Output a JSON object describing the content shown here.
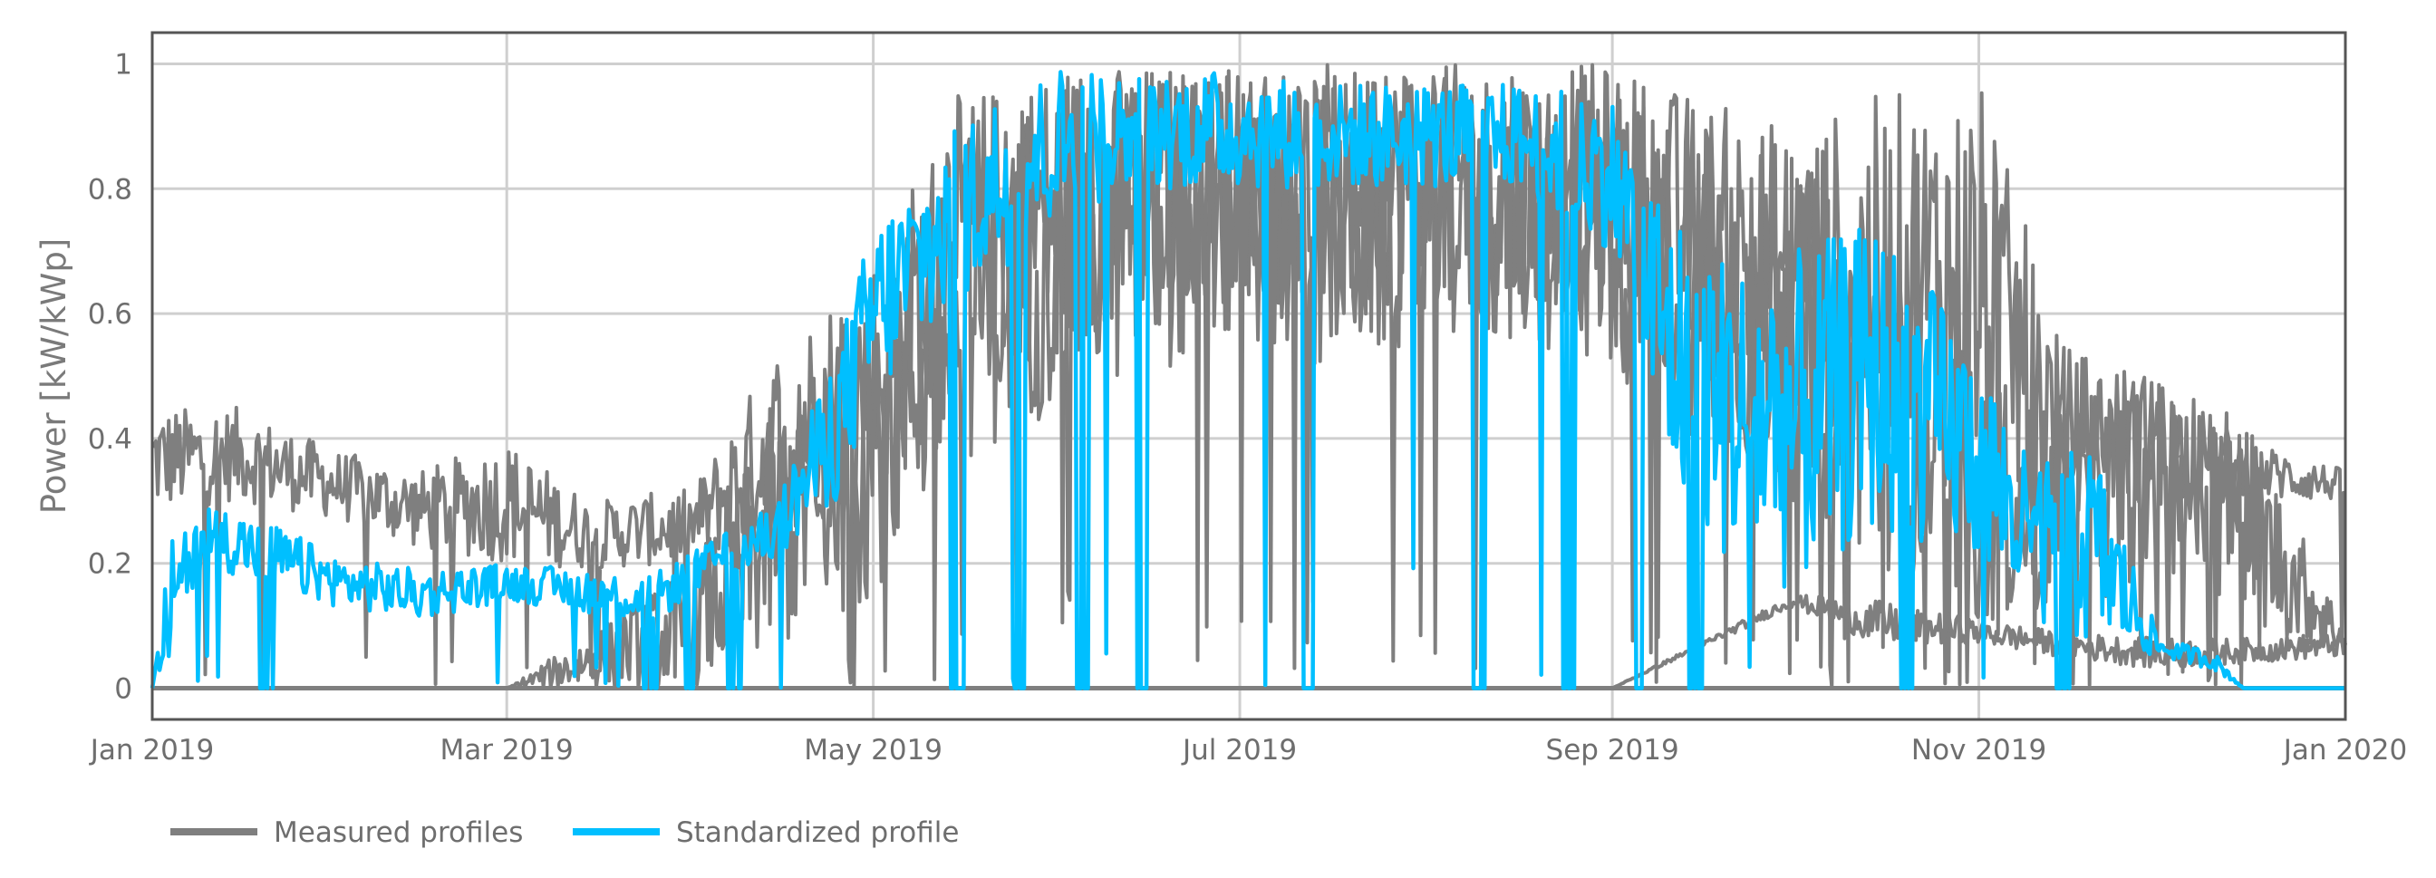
{
  "chart_data": {
    "type": "line",
    "title": "",
    "xlabel": "",
    "ylabel": "Power [kW/kWp]",
    "xlim": [
      "2019-01-01",
      "2020-01-01"
    ],
    "ylim": [
      -0.05,
      1.05
    ],
    "grid": true,
    "legend_position": "bottom-left",
    "x_ticks": [
      {
        "date": "2019-01-01",
        "label": "Jan 2019"
      },
      {
        "date": "2019-03-01",
        "label": "Mar 2019"
      },
      {
        "date": "2019-05-01",
        "label": "May 2019"
      },
      {
        "date": "2019-07-01",
        "label": "Jul 2019"
      },
      {
        "date": "2019-09-01",
        "label": "Sep 2019"
      },
      {
        "date": "2019-11-01",
        "label": "Nov 2019"
      },
      {
        "date": "2020-01-01",
        "label": "Jan 2020"
      }
    ],
    "y_ticks": [
      {
        "value": 0,
        "label": "0"
      },
      {
        "value": 0.2,
        "label": "0.2"
      },
      {
        "value": 0.4,
        "label": "0.4"
      },
      {
        "value": 0.6,
        "label": "0.6"
      },
      {
        "value": 0.8,
        "label": "0.8"
      },
      {
        "value": 1,
        "label": "1"
      }
    ],
    "series": [
      {
        "name": "Measured profiles",
        "color": "#7f7f7f",
        "envelopes": [
          {
            "x": [
              "2019-01-01",
              "2019-01-15",
              "2019-02-01",
              "2019-02-15",
              "2019-03-01",
              "2019-03-15",
              "2019-04-01",
              "2019-04-15",
              "2019-05-01",
              "2019-05-15",
              "2019-06-01",
              "2019-06-15",
              "2019-07-01",
              "2019-07-15",
              "2019-08-01",
              "2019-08-15",
              "2019-09-01",
              "2019-09-15",
              "2019-10-01",
              "2019-10-15",
              "2019-11-01",
              "2019-11-15",
              "2019-12-01",
              "2019-12-15",
              "2020-01-01"
            ],
            "low": [
              0.28,
              0.3,
              0.27,
              0.22,
              0.2,
              0.19,
              0.2,
              0.24,
              0.3,
              0.45,
              0.55,
              0.6,
              0.62,
              0.6,
              0.6,
              0.6,
              0.6,
              0.5,
              0.4,
              0.35,
              0.3,
              0.28,
              0.3,
              0.3,
              0.3
            ],
            "high": [
              0.45,
              0.45,
              0.38,
              0.35,
              0.4,
              0.3,
              0.32,
              0.55,
              0.7,
              0.95,
              1.0,
              1.0,
              1.0,
              1.0,
              1.0,
              1.0,
              1.0,
              0.95,
              0.9,
              0.95,
              0.98,
              0.55,
              0.5,
              0.4,
              0.35
            ]
          },
          {
            "x": [
              "2019-01-01",
              "2019-03-01",
              "2019-04-01",
              "2019-04-15",
              "2019-05-01",
              "2019-05-15",
              "2019-06-01",
              "2019-06-15",
              "2019-07-01",
              "2019-07-15",
              "2019-08-01",
              "2019-08-15",
              "2019-09-01",
              "2019-09-15",
              "2019-10-01",
              "2019-10-15",
              "2019-11-01",
              "2019-11-15",
              "2019-12-01",
              "2019-12-15",
              "2020-01-01"
            ],
            "low": [
              0.0,
              0.0,
              0.0,
              0.05,
              0.15,
              0.35,
              0.45,
              0.5,
              0.55,
              0.5,
              0.55,
              0.55,
              0.5,
              0.4,
              0.3,
              0.2,
              0.1,
              0.1,
              0.2,
              0.1,
              0.05
            ],
            "high": [
              0.0,
              0.0,
              0.2,
              0.45,
              0.65,
              0.9,
              0.98,
              0.98,
              0.98,
              0.98,
              0.98,
              0.98,
              0.97,
              0.9,
              0.85,
              0.75,
              0.5,
              0.45,
              0.5,
              0.45,
              0.1
            ]
          },
          {
            "x": [
              "2019-01-01",
              "2019-05-01",
              "2019-09-01",
              "2019-10-01",
              "2019-10-15",
              "2019-11-01",
              "2019-11-15",
              "2019-12-01",
              "2019-12-15",
              "2020-01-01"
            ],
            "low": [
              0.0,
              0.0,
              0.0,
              0.13,
              0.07,
              0.07,
              0.05,
              0.03,
              0.04,
              0.05
            ],
            "high": [
              0.0,
              0.0,
              0.0,
              0.15,
              0.14,
              0.11,
              0.09,
              0.08,
              0.08,
              0.09
            ]
          }
        ]
      },
      {
        "name": "Standardized profile",
        "color": "#00bfff",
        "x": [
          "2019-01-01",
          "2019-01-05",
          "2019-01-10",
          "2019-01-20",
          "2019-02-01",
          "2019-02-15",
          "2019-03-01",
          "2019-03-15",
          "2019-03-25",
          "2019-04-05",
          "2019-04-15",
          "2019-04-25",
          "2019-05-01",
          "2019-05-10",
          "2019-05-20",
          "2019-06-01",
          "2019-06-15",
          "2019-07-01",
          "2019-07-15",
          "2019-08-01",
          "2019-08-15",
          "2019-09-01",
          "2019-09-10",
          "2019-09-20",
          "2019-10-01",
          "2019-10-15",
          "2019-11-01",
          "2019-11-10",
          "2019-11-20",
          "2019-12-01",
          "2019-12-10",
          "2019-12-15",
          "2020-01-01"
        ],
        "low": [
          0.0,
          0.03,
          0.2,
          0.16,
          0.13,
          0.11,
          0.14,
          0.12,
          0.1,
          0.18,
          0.2,
          0.3,
          0.45,
          0.55,
          0.65,
          0.75,
          0.8,
          0.8,
          0.8,
          0.8,
          0.8,
          0.7,
          0.3,
          0.2,
          0.15,
          0.25,
          0.2,
          0.1,
          0.06,
          0.05,
          0.03,
          0.0,
          0.0
        ],
        "high": [
          0.0,
          0.3,
          0.3,
          0.27,
          0.21,
          0.19,
          0.2,
          0.19,
          0.18,
          0.24,
          0.3,
          0.55,
          0.75,
          0.85,
          0.95,
          1.0,
          0.99,
          0.99,
          0.97,
          0.97,
          0.97,
          0.95,
          0.8,
          0.7,
          0.7,
          0.75,
          0.55,
          0.35,
          0.4,
          0.08,
          0.06,
          0.0,
          0.0
        ],
        "dips_to_zero": [
          "2019-01-20",
          "2019-03-25",
          "2019-04-01",
          "2019-04-08",
          "2019-05-15",
          "2019-05-25",
          "2019-06-05",
          "2019-06-15",
          "2019-07-12",
          "2019-08-10",
          "2019-08-25",
          "2019-09-05",
          "2019-09-15",
          "2019-10-20",
          "2019-11-15"
        ]
      }
    ]
  },
  "legend": {
    "items": [
      {
        "label": "Measured profiles",
        "color": "#7f7f7f"
      },
      {
        "label": "Standardized profile",
        "color": "#00bfff"
      }
    ]
  }
}
